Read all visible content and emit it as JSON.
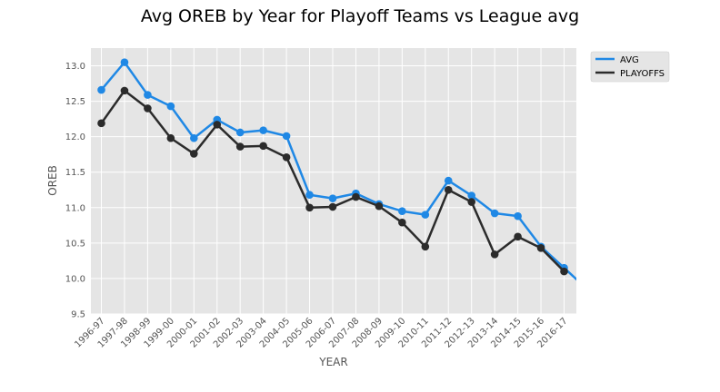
{
  "chart_data": {
    "type": "line",
    "title": "Avg OREB by Year for Playoff Teams vs League avg",
    "xlabel": "YEAR",
    "ylabel": "OREB",
    "ylim": [
      9.5,
      13.25
    ],
    "yticks": [
      "9.5",
      "10.0",
      "10.5",
      "11.0",
      "11.5",
      "12.0",
      "12.5",
      "13.0"
    ],
    "grid": true,
    "legend_position": "top-right, outside plot",
    "categories": [
      "1996-97",
      "1997-98",
      "1998-99",
      "1999-00",
      "2000-01",
      "2001-02",
      "2002-03",
      "2003-04",
      "2004-05",
      "2005-06",
      "2006-07",
      "2007-08",
      "2008-09",
      "2009-10",
      "2010-11",
      "2011-12",
      "2012-13",
      "2013-14",
      "2014-15",
      "2015-16",
      "2016-17"
    ],
    "series": [
      {
        "name": "AVG",
        "color": "#1f88e5",
        "values": [
          12.66,
          13.05,
          12.59,
          12.43,
          11.98,
          12.24,
          12.06,
          12.09,
          12.01,
          11.18,
          11.13,
          11.2,
          11.05,
          10.95,
          10.9,
          11.38,
          11.17,
          10.92,
          10.88,
          10.45,
          10.15
        ],
        "continues_beyond": 9.85
      },
      {
        "name": "PLAYOFFS",
        "color": "#2b2b2b",
        "values": [
          12.19,
          12.65,
          12.4,
          11.98,
          11.76,
          12.17,
          11.86,
          11.87,
          11.71,
          11.0,
          11.01,
          11.15,
          11.02,
          10.79,
          10.45,
          11.25,
          11.08,
          10.34,
          10.59,
          10.43,
          10.1
        ]
      }
    ]
  }
}
